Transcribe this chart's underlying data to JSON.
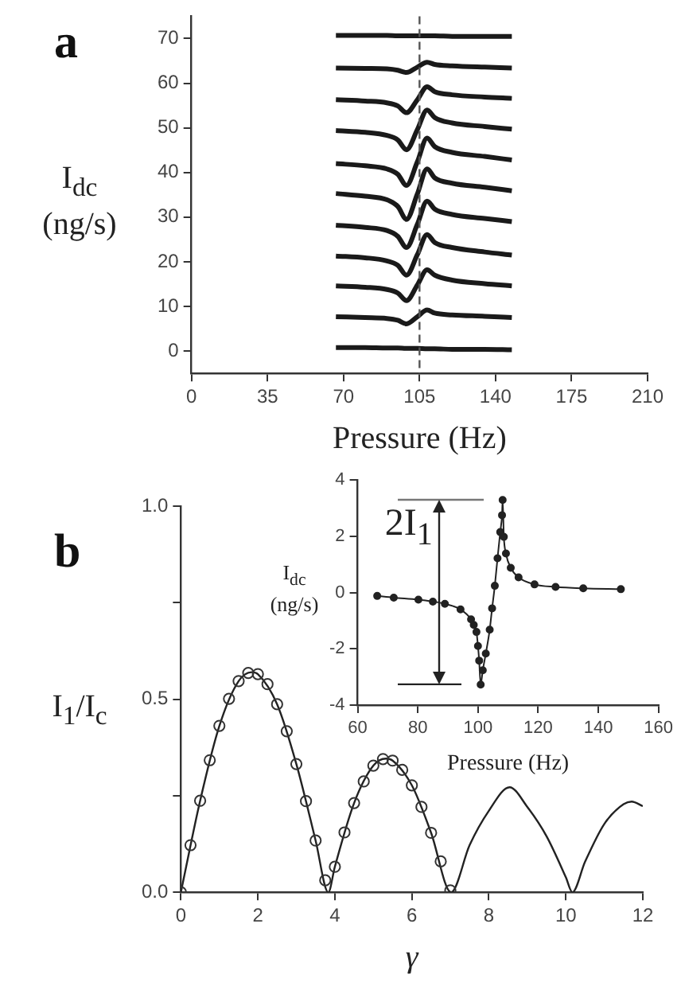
{
  "chart_data": [
    {
      "type": "line",
      "title": "a",
      "xlabel": "Pressure (Hz)",
      "ylabel": "I$_{dc}$\n(ng/s)",
      "marker": "none",
      "x": [
        66.5,
        80,
        90,
        95,
        99,
        104,
        108.5,
        112,
        120,
        135,
        147.5
      ],
      "series": [
        {
          "color": "#1a1a1a",
          "values": [
            0.8,
            0.8,
            0.7,
            0.7,
            0.6,
            0.6,
            0.5,
            0.5,
            0.4,
            0.4,
            0.3
          ]
        },
        {
          "color": "#1a1a1a",
          "values": [
            7.7,
            7.5,
            7.3,
            6.9,
            6.1,
            7.7,
            9.2,
            8.5,
            8.1,
            7.8,
            7.5
          ]
        },
        {
          "color": "#1a1a1a",
          "values": [
            14.6,
            14.3,
            13.8,
            13.0,
            11.3,
            14.8,
            18.2,
            17.0,
            15.9,
            15.1,
            14.6
          ]
        },
        {
          "color": "#1a1a1a",
          "values": [
            21.3,
            20.9,
            20.2,
            19.2,
            17.0,
            21.6,
            26.1,
            24.3,
            23.2,
            22.2,
            21.5
          ]
        },
        {
          "color": "#1a1a1a",
          "values": [
            28.2,
            27.7,
            27.0,
            25.7,
            23.2,
            28.4,
            33.6,
            31.8,
            30.6,
            29.7,
            29.0
          ]
        },
        {
          "color": "#1a1a1a",
          "values": [
            35.3,
            34.7,
            33.9,
            32.4,
            29.5,
            35.2,
            40.8,
            38.8,
            37.6,
            36.7,
            35.9
          ]
        },
        {
          "color": "#1a1a1a",
          "values": [
            42.0,
            41.5,
            40.8,
            39.6,
            37.1,
            42.4,
            47.7,
            45.8,
            44.5,
            43.6,
            42.8
          ]
        },
        {
          "color": "#1a1a1a",
          "values": [
            49.4,
            49.0,
            48.3,
            47.3,
            45.1,
            49.6,
            54.0,
            52.3,
            51.1,
            50.3,
            49.7
          ]
        },
        {
          "color": "#1a1a1a",
          "values": [
            56.3,
            56.0,
            55.6,
            54.9,
            53.4,
            56.3,
            59.2,
            58.1,
            57.4,
            56.9,
            56.6
          ]
        },
        {
          "color": "#1a1a1a",
          "values": [
            63.4,
            63.3,
            63.2,
            62.9,
            62.4,
            63.6,
            64.7,
            64.2,
            63.9,
            63.6,
            63.4
          ]
        },
        {
          "color": "#1a1a1a",
          "values": [
            70.7,
            70.7,
            70.7,
            70.6,
            70.6,
            70.6,
            70.6,
            70.6,
            70.5,
            70.5,
            70.5
          ]
        }
      ],
      "xlim": [
        0,
        210
      ],
      "xticks": [
        0,
        35,
        70,
        105,
        140,
        175,
        210
      ],
      "ylim": [
        -5,
        75
      ],
      "yticks": [
        0,
        10,
        20,
        30,
        40,
        50,
        60,
        70
      ],
      "ref_lines": [
        {
          "axis": "x",
          "value": 105,
          "color": "#555555",
          "line_style": "dashed"
        }
      ]
    },
    {
      "type": "line",
      "title": "b",
      "xlabel": "γ",
      "ylabel": "I$_{1}$/I$_{c}$",
      "marker": "circle",
      "series": [
        {
          "type": "scatter",
          "color": "#333333",
          "x": [
            0,
            0.25,
            0.5,
            0.75,
            1,
            1.25,
            1.5,
            1.75,
            2,
            2.25,
            2.5,
            2.75,
            3,
            3.25,
            3.5,
            3.75,
            4,
            4.25,
            4.5,
            4.75,
            5,
            5.25,
            5.5,
            5.75,
            6,
            6.25,
            6.5,
            6.75,
            7
          ],
          "values": [
            0,
            0.122,
            0.237,
            0.342,
            0.431,
            0.501,
            0.547,
            0.568,
            0.565,
            0.539,
            0.487,
            0.417,
            0.332,
            0.236,
            0.134,
            0.031,
            0.066,
            0.155,
            0.231,
            0.287,
            0.328,
            0.345,
            0.341,
            0.317,
            0.277,
            0.221,
            0.154,
            0.08,
            0.005
          ]
        },
        {
          "type": "line",
          "color": "#222222",
          "marker": "none",
          "x": [
            0,
            0.5,
            1,
            1.5,
            1.84,
            2,
            2.5,
            3,
            3.5,
            3.83,
            4,
            4.5,
            5,
            5.33,
            5.5,
            6,
            6.5,
            7.02,
            7.5,
            8,
            8.54,
            9,
            9.5,
            10,
            10.17,
            10.5,
            11,
            11.5,
            11.71,
            12
          ],
          "values": [
            0,
            0.237,
            0.431,
            0.547,
            0.57,
            0.565,
            0.487,
            0.332,
            0.134,
            0,
            0.066,
            0.231,
            0.328,
            0.346,
            0.341,
            0.277,
            0.154,
            0,
            0.122,
            0.211,
            0.272,
            0.221,
            0.145,
            0.039,
            0,
            0.079,
            0.177,
            0.228,
            0.235,
            0.223
          ]
        }
      ],
      "xlim": [
        0,
        12
      ],
      "xticks": [
        0,
        2,
        4,
        6,
        8,
        10,
        12
      ],
      "ylim": [
        0,
        1
      ],
      "yticks": [
        {
          "value": 0,
          "label": "0.0"
        },
        {
          "value": 0.25,
          "label": null
        },
        {
          "value": 0.5,
          "label": "0.5"
        },
        {
          "value": 0.75,
          "label": null
        },
        {
          "value": 1,
          "label": "1.0"
        }
      ]
    },
    {
      "type": "line",
      "xlabel": "Pressure (Hz)",
      "ylabel": "I$_{dc}$\n(ng/s)",
      "marker": "circle",
      "series": [
        {
          "color": "#222222",
          "x": [
            66.5,
            72,
            80.2,
            85,
            89,
            94.2,
            97.7,
            98.6,
            99.5,
            100.0,
            100.4,
            100.9,
            101.6,
            102.6,
            103.9,
            104.7,
            105.6,
            106.5,
            107.4,
            108.0,
            108.2,
            108.6,
            109.3,
            110.9,
            113.5,
            118.8,
            125.8,
            135,
            147.5
          ],
          "values": [
            -0.12,
            -0.18,
            -0.25,
            -0.32,
            -0.4,
            -0.6,
            -0.95,
            -1.15,
            -1.4,
            -1.9,
            -2.42,
            -3.27,
            -2.76,
            -2.17,
            -1.32,
            -0.56,
            0.24,
            1.22,
            2.15,
            2.75,
            3.29,
            1.98,
            1.39,
            0.88,
            0.54,
            0.29,
            0.2,
            0.15,
            0.12
          ]
        }
      ],
      "xlim": [
        60,
        160
      ],
      "xticks": [
        60,
        80,
        100,
        120,
        140,
        160
      ],
      "ylim": [
        -4,
        4
      ],
      "yticks": [
        -4,
        -2,
        0,
        2,
        4
      ],
      "annotations": [
        "2I$_{1}$"
      ]
    }
  ]
}
